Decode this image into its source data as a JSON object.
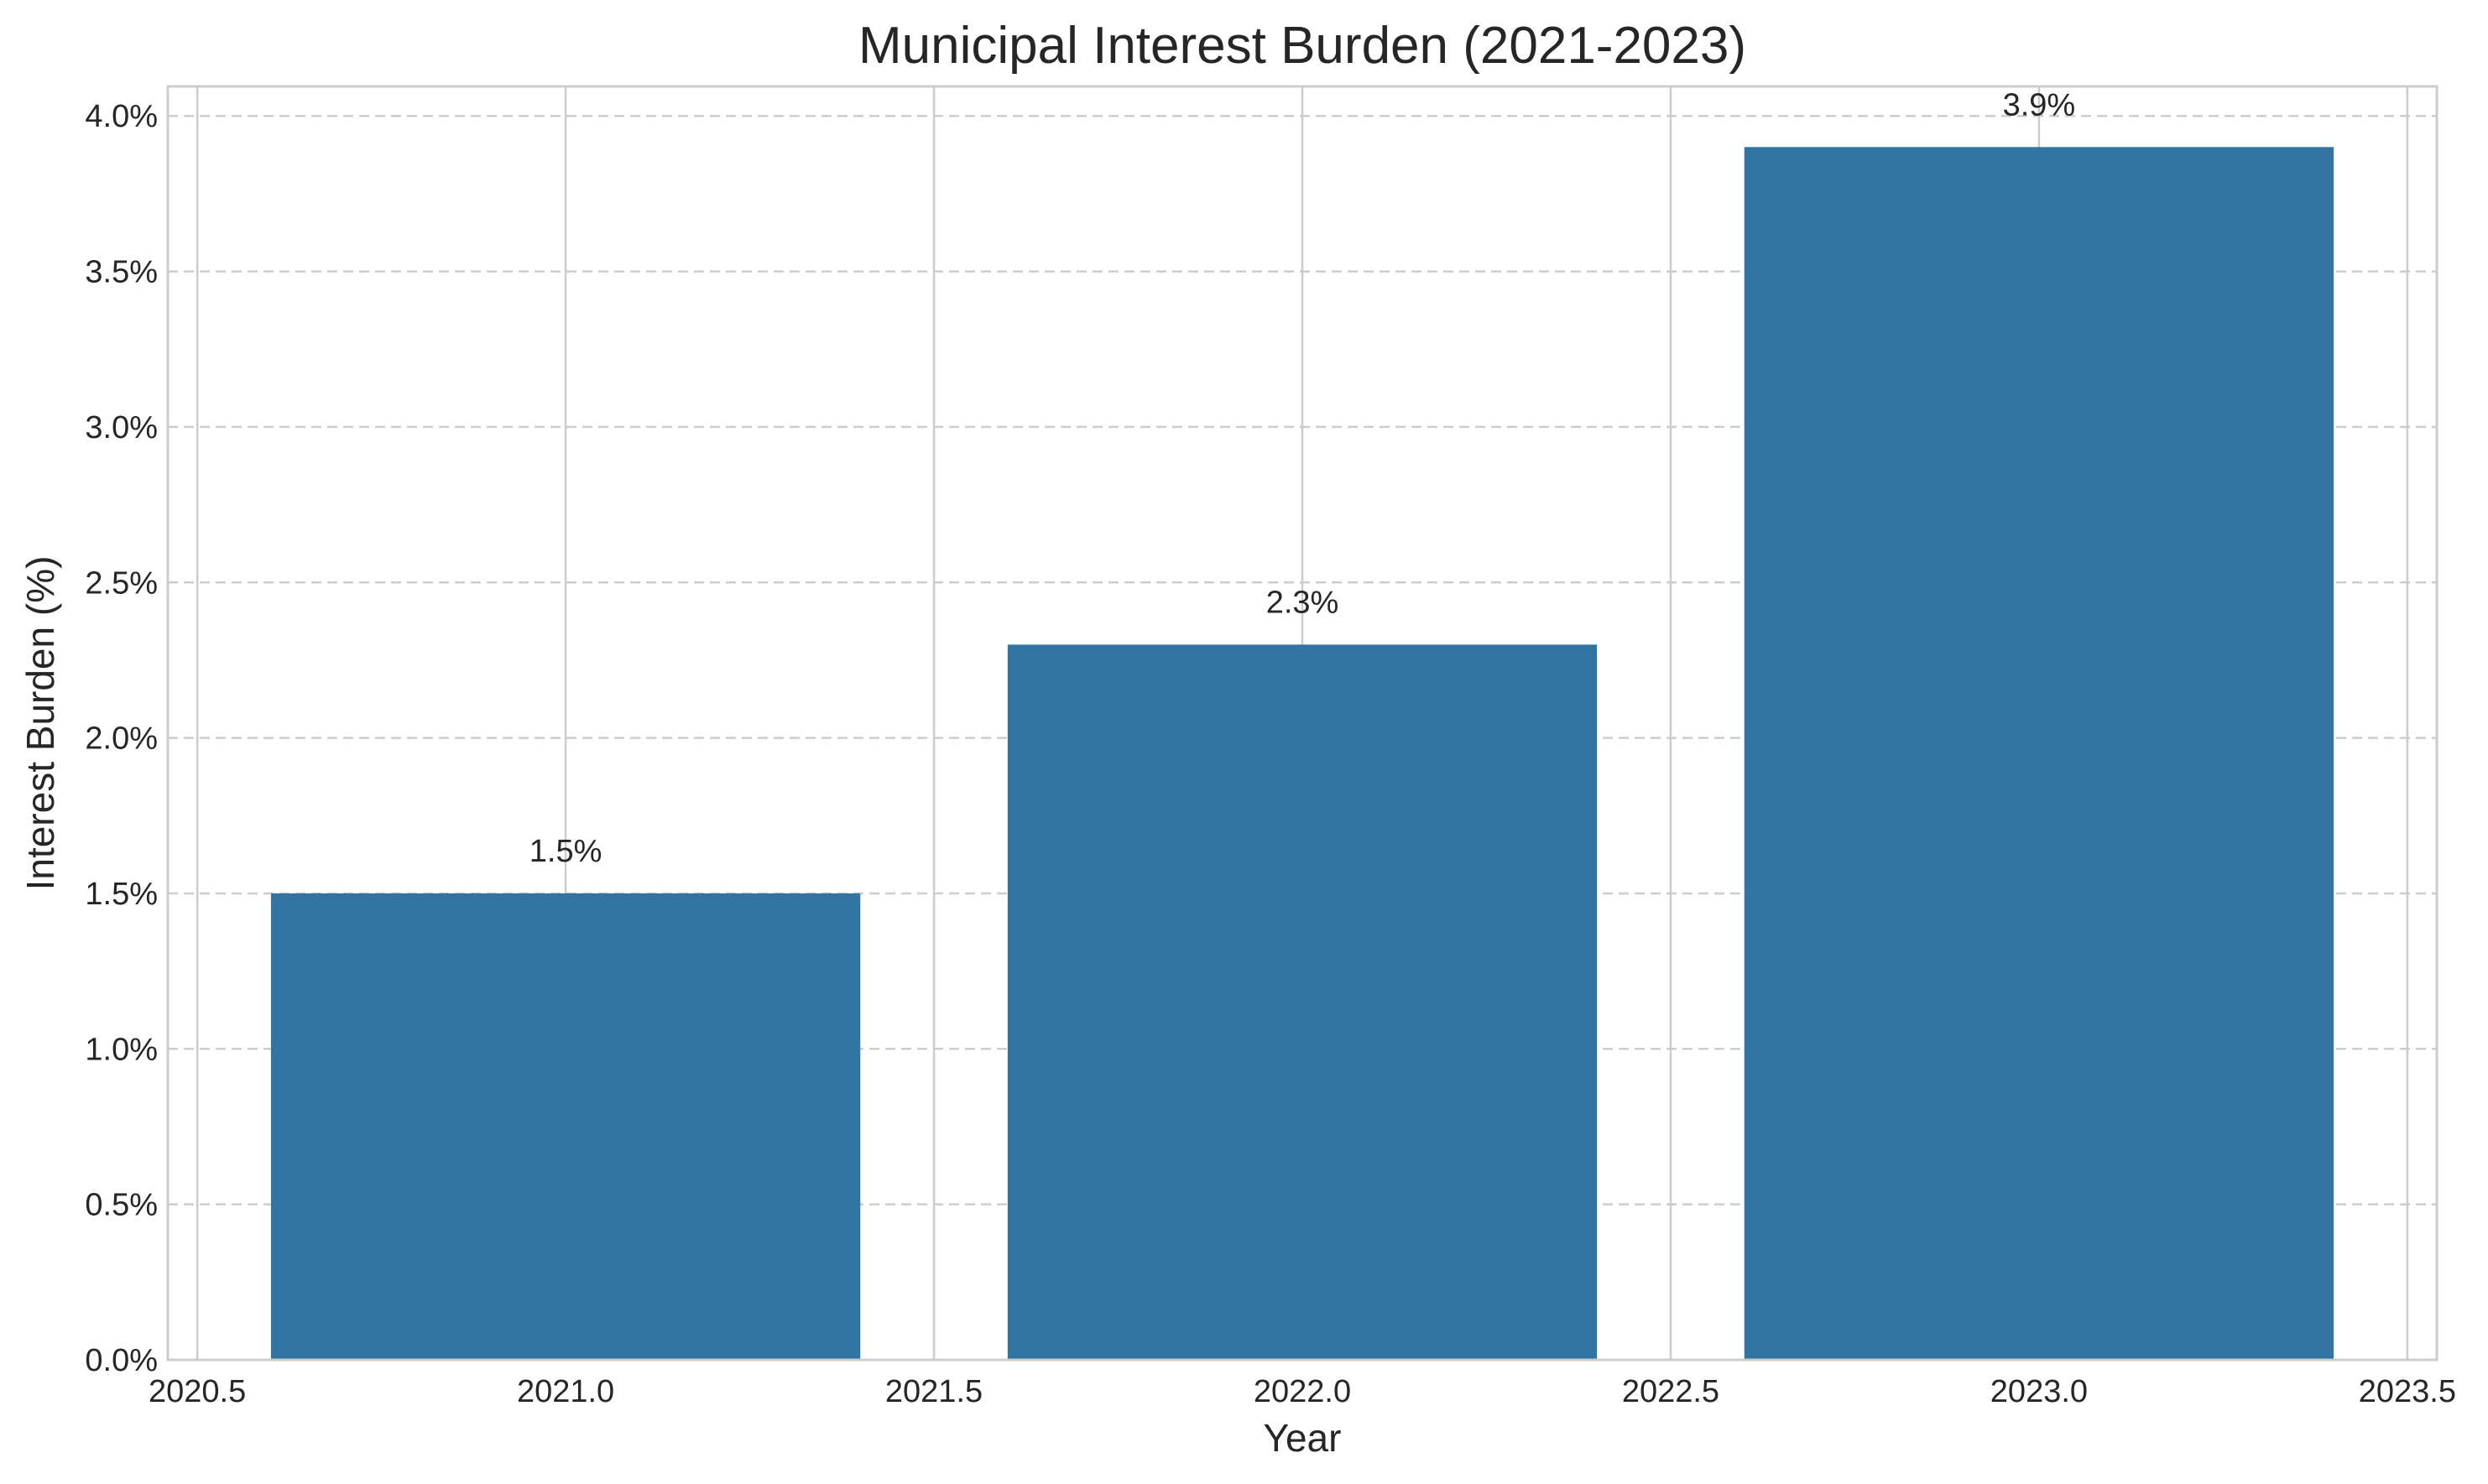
{
  "chart_data": {
    "type": "bar",
    "title": "Municipal Interest Burden (2021-2023)",
    "xlabel": "Year",
    "ylabel": "Interest Burden (%)",
    "x": [
      2021,
      2022,
      2023
    ],
    "values": [
      1.5,
      2.3,
      3.9
    ],
    "data_labels": [
      "1.5%",
      "2.3%",
      "3.9%"
    ],
    "bar_width": 0.8,
    "xlim": [
      2020.46,
      2023.54
    ],
    "ylim": [
      0,
      4.095
    ],
    "x_ticks": [
      2020.5,
      2021.0,
      2021.5,
      2022.0,
      2022.5,
      2023.0,
      2023.5
    ],
    "x_tick_labels": [
      "2020.5",
      "2021.0",
      "2021.5",
      "2022.0",
      "2022.5",
      "2023.0",
      "2023.5"
    ],
    "y_ticks": [
      0,
      0.5,
      1.0,
      1.5,
      2.0,
      2.5,
      3.0,
      3.5,
      4.0
    ],
    "y_tick_labels": [
      "0.0%",
      "0.5%",
      "1.0%",
      "1.5%",
      "2.0%",
      "2.5%",
      "3.0%",
      "3.5%",
      "4.0%"
    ],
    "grid": {
      "x": true,
      "y": true,
      "y_style": "dashed"
    },
    "colors": {
      "bar": "#3274a1",
      "grid": "#cccccc",
      "spine": "#cccccc",
      "text": "#262626"
    }
  }
}
